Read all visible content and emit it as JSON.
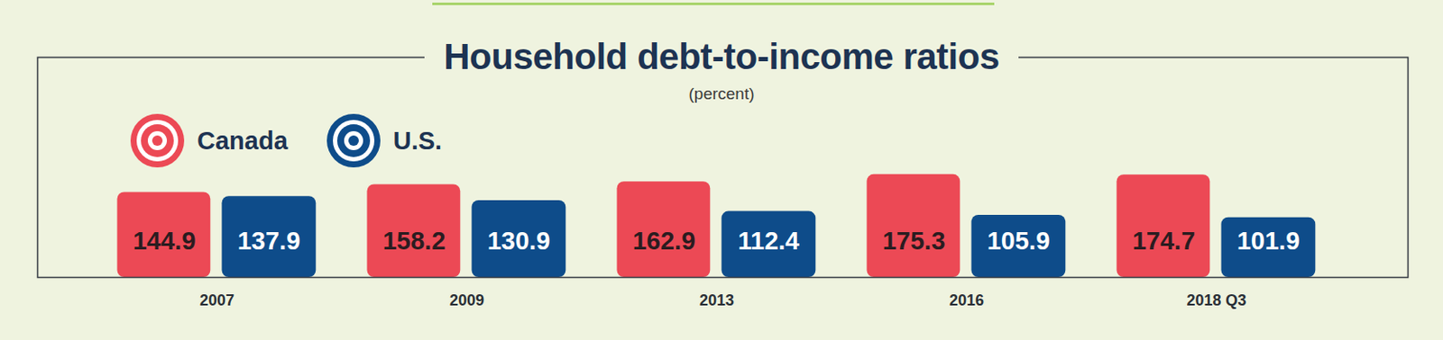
{
  "chart_data": {
    "type": "bar",
    "title": "Household debt-to-income ratios",
    "subtitle": "(percent)",
    "categories": [
      "2007",
      "2009",
      "2013",
      "2016",
      "2018 Q3"
    ],
    "series": [
      {
        "name": "Canada",
        "color": "#ec4955",
        "values": [
          144.9,
          158.2,
          162.9,
          175.3,
          174.7
        ]
      },
      {
        "name": "U.S.",
        "color": "#0e4c8a",
        "values": [
          137.9,
          130.9,
          112.4,
          105.9,
          101.9
        ]
      }
    ],
    "ylim": [
      0,
      375
    ],
    "yticks": [],
    "grid": false,
    "data_labels": true,
    "tick_labels": "x",
    "legend": "top-left"
  }
}
